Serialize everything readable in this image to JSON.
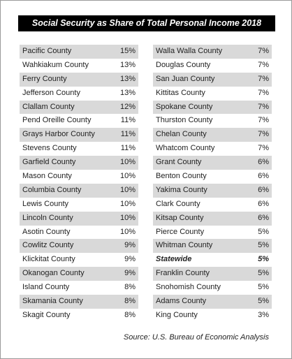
{
  "header": {
    "title": "Social Security as Share of Total Personal Income 2018"
  },
  "tables": [
    {
      "rows": [
        [
          "Pacific County",
          "15%"
        ],
        [
          "Wahkiakum County",
          "13%"
        ],
        [
          "Ferry County",
          "13%"
        ],
        [
          "Jefferson County",
          "13%"
        ],
        [
          "Clallam County",
          "12%"
        ],
        [
          "Pend Oreille County",
          "11%"
        ],
        [
          "Grays Harbor County",
          "11%"
        ],
        [
          "Stevens County",
          "11%"
        ],
        [
          "Garfield County",
          "10%"
        ],
        [
          "Mason County",
          "10%"
        ],
        [
          "Columbia County",
          "10%"
        ],
        [
          "Lewis County",
          "10%"
        ],
        [
          "Lincoln County",
          "10%"
        ],
        [
          "Asotin County",
          "10%"
        ],
        [
          "Cowlitz County",
          "9%"
        ],
        [
          "Klickitat County",
          "9%"
        ],
        [
          "Okanogan County",
          "9%"
        ],
        [
          "Island County",
          "8%"
        ],
        [
          "Skamania County",
          "8%"
        ],
        [
          "Skagit County",
          "8%"
        ]
      ]
    },
    {
      "rows": [
        [
          "Walla Walla County",
          "7%"
        ],
        [
          "Douglas County",
          "7%"
        ],
        [
          "San Juan County",
          "7%"
        ],
        [
          "Kittitas County",
          "7%"
        ],
        [
          "Spokane County",
          "7%"
        ],
        [
          "Thurston County",
          "7%"
        ],
        [
          "Chelan County",
          "7%"
        ],
        [
          "Whatcom County",
          "7%"
        ],
        [
          "Grant County",
          "6%"
        ],
        [
          "Benton County",
          "6%"
        ],
        [
          "Yakima County",
          "6%"
        ],
        [
          "Clark County",
          "6%"
        ],
        [
          "Kitsap County",
          "6%"
        ],
        [
          "Pierce County",
          "5%"
        ],
        [
          "Whitman County",
          "5%"
        ],
        [
          "Statewide",
          "5%"
        ],
        [
          "Franklin County",
          "5%"
        ],
        [
          "Snohomish County",
          "5%"
        ],
        [
          "Adams County",
          "5%"
        ],
        [
          "King County",
          "3%"
        ]
      ],
      "bold_row": 15
    }
  ],
  "footer": {
    "source": "Source: U.S. Bureau of Economic Analysis"
  }
}
